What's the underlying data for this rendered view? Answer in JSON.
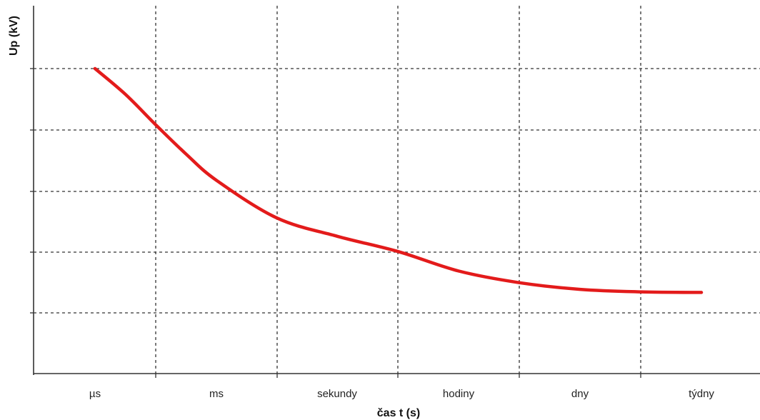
{
  "chart_data": {
    "type": "line",
    "title": "",
    "xlabel": "čas t (s)",
    "ylabel": "Up (kV)",
    "categories": [
      "µs",
      "ms",
      "sekundy",
      "hodiny",
      "dny",
      "týdny"
    ],
    "x_scale": "logarithmic time (qualitative categories)",
    "y_scale": "unlabeled (relative grid units)",
    "ylim": [
      0,
      5
    ],
    "grid": true,
    "series": [
      {
        "color": "#e31b1b",
        "x": [
          0,
          0.25,
          0.5,
          0.75,
          1.0,
          1.5,
          2.0,
          2.5,
          3.0,
          3.5,
          4.0,
          4.5,
          5.0
        ],
        "y": [
          5.0,
          4.58,
          4.08,
          3.6,
          3.17,
          2.55,
          2.25,
          2.0,
          1.68,
          1.49,
          1.38,
          1.34,
          1.33
        ]
      }
    ]
  }
}
